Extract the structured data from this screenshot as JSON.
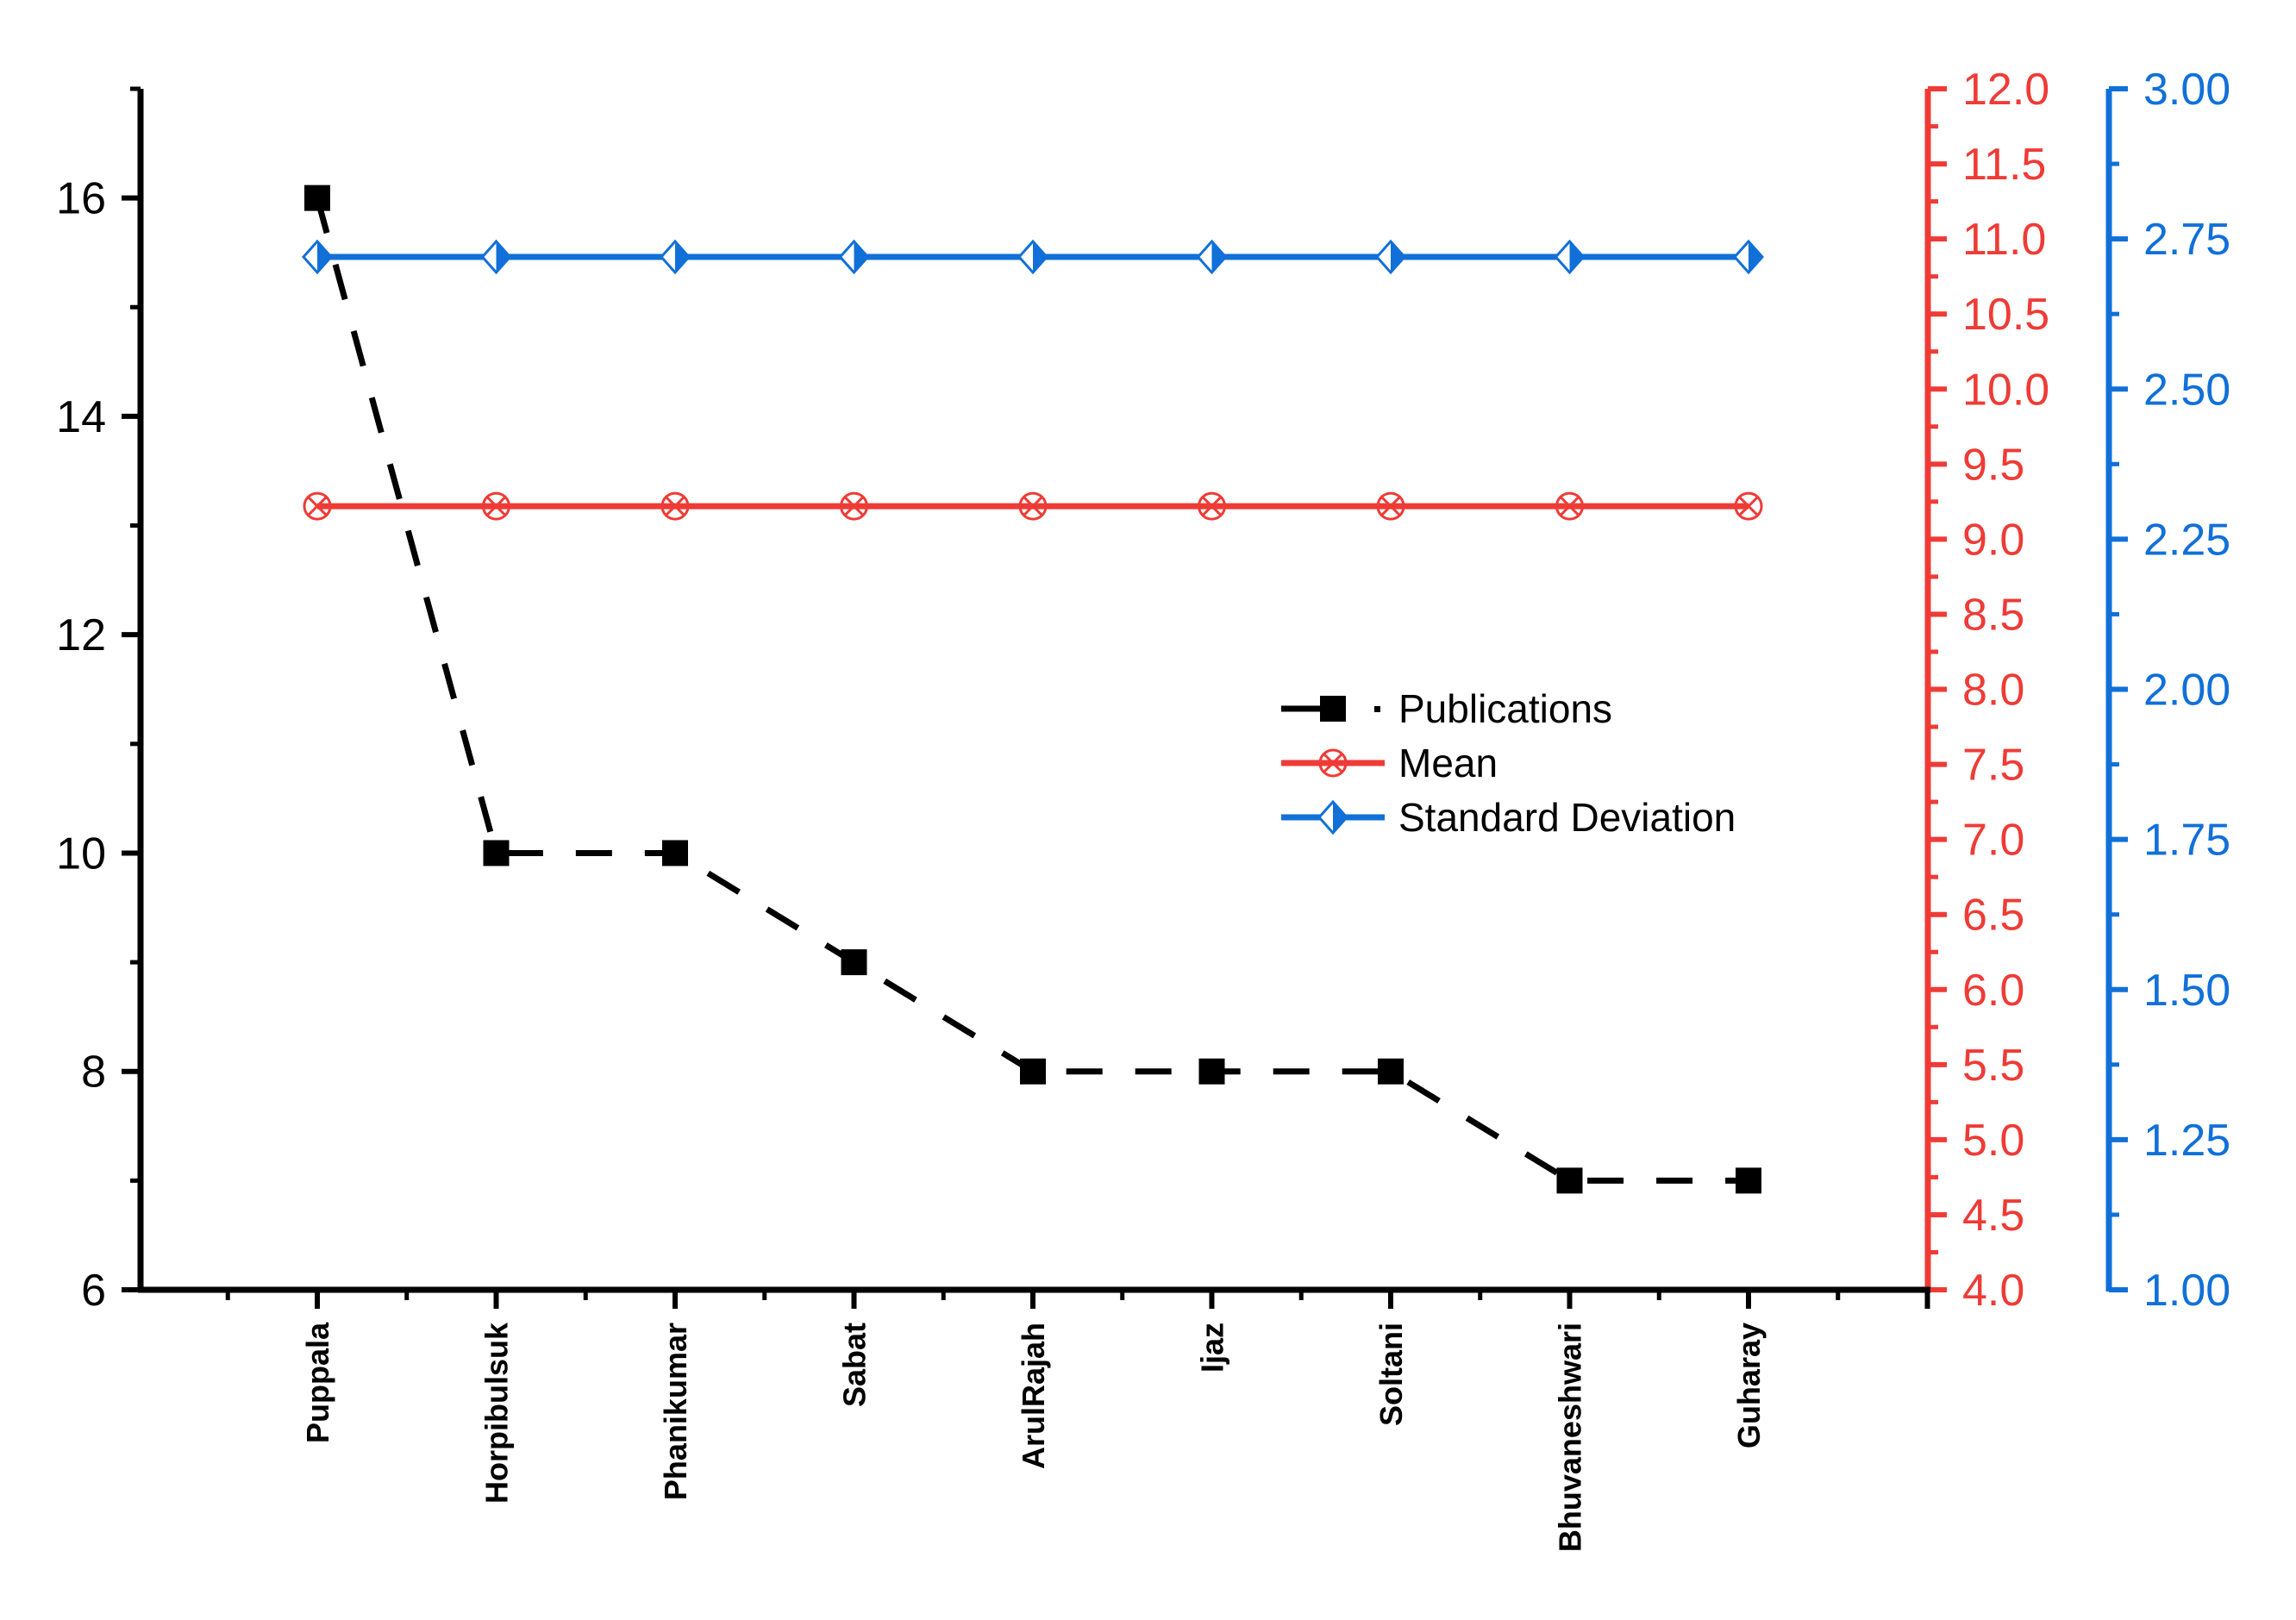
{
  "chart_data": {
    "type": "line",
    "categories": [
      "Puppala",
      "Horpibulsuk",
      "Phanikumar",
      "Sabat",
      "ArulRajah",
      "Ijaz",
      "Soltani",
      "Bhuvaneshwari",
      "Guharay"
    ],
    "series": [
      {
        "name": "Publications",
        "axis": "left",
        "values": [
          16,
          10,
          10,
          9,
          8,
          8,
          8,
          7,
          7
        ],
        "color": "#000000",
        "line_style": "dashed",
        "marker": "square"
      },
      {
        "name": "Mean",
        "axis": "right1",
        "values": [
          9.22,
          9.22,
          9.22,
          9.22,
          9.22,
          9.22,
          9.22,
          9.22,
          9.22
        ],
        "color": "#ef3b36",
        "line_style": "solid",
        "marker": "circle-x"
      },
      {
        "name": "Standard Deviation",
        "axis": "right2",
        "values": [
          2.72,
          2.72,
          2.72,
          2.72,
          2.72,
          2.72,
          2.72,
          2.72,
          2.72
        ],
        "color": "#1170d8",
        "line_style": "solid",
        "marker": "half-diamond"
      }
    ],
    "axes": {
      "left": {
        "ylim": [
          6,
          17
        ],
        "ticks": [
          "6",
          "8",
          "10",
          "12",
          "14",
          "16"
        ],
        "color": "#000000"
      },
      "right1": {
        "ylim": [
          4.0,
          12.0
        ],
        "ticks": [
          "4.0",
          "4.5",
          "5.0",
          "5.5",
          "6.0",
          "6.5",
          "7.0",
          "7.5",
          "8.0",
          "8.5",
          "9.0",
          "9.5",
          "10.0",
          "10.5",
          "11.0",
          "11.5",
          "12.0"
        ],
        "color": "#ef3b36"
      },
      "right2": {
        "ylim": [
          1.0,
          3.0
        ],
        "ticks": [
          "1.00",
          "1.25",
          "1.50",
          "1.75",
          "2.00",
          "2.25",
          "2.50",
          "2.75",
          "3.00"
        ],
        "color": "#1170d8"
      }
    },
    "title": "",
    "xlabel": "",
    "ylabel": "",
    "legend": {
      "position": "center-right",
      "entries": [
        "Publications",
        "Mean",
        "Standard Deviation"
      ]
    },
    "grid": false
  }
}
